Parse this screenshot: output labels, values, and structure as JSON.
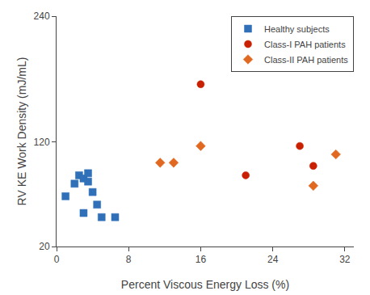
{
  "chart_data": {
    "type": "scatter",
    "xlabel": "Percent Viscous Energy Loss (%)",
    "ylabel": "RV KE Work Density (mJ/mL)",
    "series": [
      {
        "name": "Healthy subjects",
        "color": "#3070b8",
        "marker": "square",
        "x": [
          1.0,
          2.0,
          2.5,
          3.0,
          3.5,
          3.5,
          4.0,
          4.5,
          3.0,
          5.0,
          6.5
        ],
        "values": [
          68,
          80,
          88,
          85,
          90,
          82,
          72,
          60,
          52,
          48,
          48
        ]
      },
      {
        "name": "Class-I PAH patients",
        "color": "#c82000",
        "marker": "circle",
        "x": [
          16.0,
          21.0,
          27.0,
          28.5
        ],
        "values": [
          175,
          88,
          116,
          97
        ]
      },
      {
        "name": "Class-II PAH patients",
        "color": "#e06820",
        "marker": "diamond",
        "x": [
          11.5,
          13.0,
          16.0,
          28.5,
          31.0
        ],
        "values": [
          100,
          100,
          116,
          78,
          108
        ]
      }
    ],
    "xlim": [
      0,
      33
    ],
    "ylim": [
      20,
      240
    ],
    "xticks": [
      0,
      8,
      16,
      24,
      32
    ],
    "yticks": [
      20,
      120,
      240
    ],
    "grid": false,
    "legend": "upper right"
  }
}
